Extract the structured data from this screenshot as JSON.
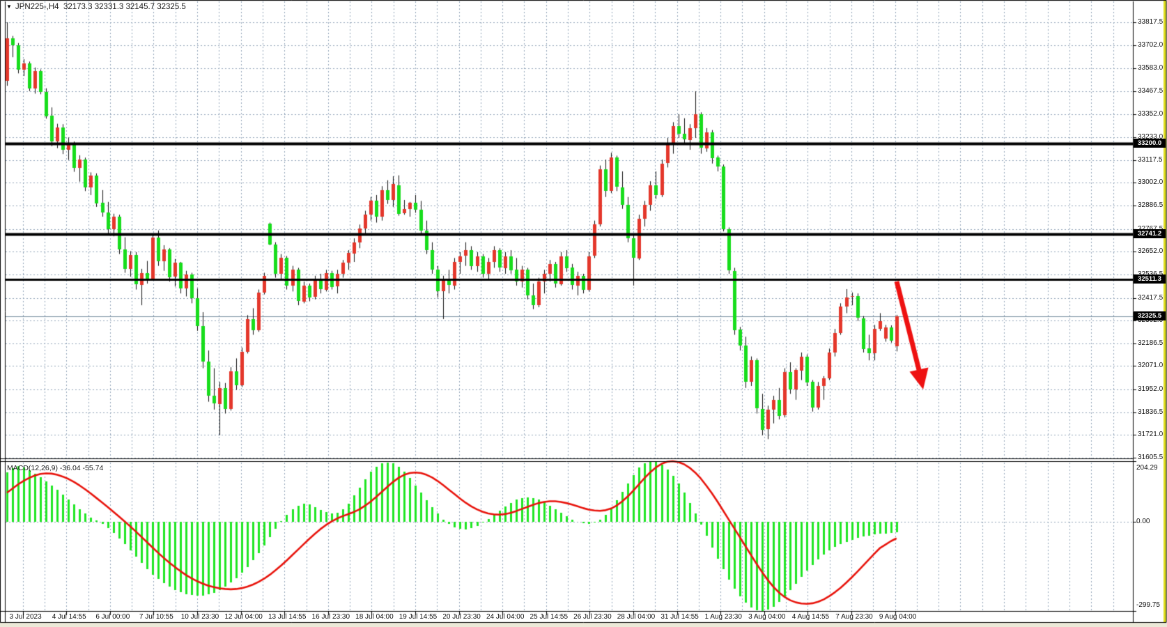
{
  "window": {
    "dropdown_icon": "▼",
    "symbol_period": "JPN225-,H4",
    "ohlc_quote": "32173.3 32331.3 32145.7 32325.5"
  },
  "price_axis": {
    "ticks": [
      "33817.5",
      "33702.0",
      "33583.0",
      "33467.5",
      "33352.0",
      "33233.0",
      "33117.5",
      "33002.0",
      "32886.5",
      "32767.5",
      "32652.0",
      "32536.5",
      "32417.5",
      "32302.0",
      "32186.5",
      "32071.0",
      "31952.0",
      "31836.5",
      "31721.0",
      "31605.5"
    ]
  },
  "time_axis": {
    "labels": [
      "3 Jul 2023",
      "4 Jul 14:55",
      "6 Jul 00:00",
      "7 Jul 10:55",
      "10 Jul 23:30",
      "12 Jul 04:00",
      "13 Jul 14:55",
      "16 Jul 23:30",
      "18 Jul 04:00",
      "19 Jul 14:55",
      "20 Jul 23:30",
      "24 Jul 04:00",
      "25 Jul 14:55",
      "26 Jul 23:30",
      "28 Jul 04:00",
      "31 Jul 14:55",
      "1 Aug 23:30",
      "3 Aug 04:00",
      "4 Aug 14:55",
      "7 Aug 23:30",
      "9 Aug 04:00"
    ]
  },
  "levels": {
    "sr": [
      {
        "value": 33200.0,
        "label": "33200.0"
      },
      {
        "value": 32741.2,
        "label": "32741.2"
      },
      {
        "value": 32511.3,
        "label": "32511.3"
      }
    ],
    "current": {
      "value": 32325.5,
      "label": "32325.5"
    }
  },
  "macd_panel": {
    "label": "MACD(12,26,9) -36.04 -55.74",
    "scale_max": "204.29",
    "scale_zero": "0.00",
    "scale_min": "-299.75"
  },
  "colors": {
    "up": "#e4372b",
    "down": "#17dd1c",
    "wick": "#111111",
    "grid": "#90a3b8",
    "sr_line": "#000000",
    "current_line": "#7d93a4",
    "macd_hist": "#1fe623",
    "macd_signal": "#e8120a",
    "arrow": "#ee1111",
    "tag_bg": "#000000",
    "tag_fg": "#ffffff",
    "window_edge": "#dede20",
    "panel_bg": "#ffffff"
  },
  "chart_data": {
    "type": "candlestick",
    "title": "JPN225-,H4",
    "symbol": "JPN225-",
    "timeframe": "H4",
    "current_quote": {
      "open": 32173.3,
      "high": 32331.3,
      "low": 32145.7,
      "close": 32325.5
    },
    "price_axis_ticks": [
      33817.5,
      33702.0,
      33583.0,
      33467.5,
      33352.0,
      33233.0,
      33117.5,
      33002.0,
      32886.5,
      32767.5,
      32652.0,
      32536.5,
      32417.5,
      32302.0,
      32186.5,
      32071.0,
      31952.0,
      31836.5,
      31721.0,
      31605.5
    ],
    "ylim": [
      31605.5,
      33817.5
    ],
    "sr_levels": [
      33200.0,
      32741.2,
      32511.3
    ],
    "current_price": 32325.5,
    "annotation": {
      "shape": "thick-red-arrow",
      "from_price": 32511,
      "direction": "down-right",
      "note": "bearish arrow drawn from 32511.3 level toward 31950"
    },
    "candles_ohlc": [
      [
        33520,
        33817.5,
        33495,
        33735
      ],
      [
        33735,
        33748,
        33640,
        33700
      ],
      [
        33700,
        33712,
        33558,
        33577
      ],
      [
        33577,
        33630,
        33545,
        33610
      ],
      [
        33610,
        33618,
        33468,
        33482
      ],
      [
        33482,
        33588,
        33455,
        33570
      ],
      [
        33570,
        33578,
        33452,
        33465
      ],
      [
        33465,
        33482,
        33328,
        33342
      ],
      [
        33342,
        33385,
        33188,
        33212
      ],
      [
        33212,
        33302,
        33178,
        33282
      ],
      [
        33282,
        33300,
        33148,
        33168
      ],
      [
        33168,
        33232,
        33118,
        33205
      ],
      [
        33205,
        33212,
        33058,
        33078
      ],
      [
        33078,
        33142,
        33008,
        33122
      ],
      [
        33122,
        33130,
        32960,
        32980
      ],
      [
        32980,
        33055,
        32940,
        33040
      ],
      [
        33040,
        33050,
        32880,
        32900
      ],
      [
        32900,
        32965,
        32830,
        32850
      ],
      [
        32850,
        32905,
        32740,
        32765
      ],
      [
        32765,
        32845,
        32730,
        32830
      ],
      [
        32830,
        32840,
        32640,
        32665
      ],
      [
        32665,
        32725,
        32545,
        32565
      ],
      [
        32565,
        32655,
        32525,
        32635
      ],
      [
        32635,
        32650,
        32460,
        32485
      ],
      [
        32485,
        32565,
        32380,
        32545
      ],
      [
        32545,
        32605,
        32490,
        32515
      ],
      [
        32515,
        32740,
        32505,
        32725
      ],
      [
        32725,
        32760,
        32580,
        32605
      ],
      [
        32605,
        32685,
        32555,
        32665
      ],
      [
        32665,
        32670,
        32500,
        32525
      ],
      [
        32525,
        32615,
        32475,
        32595
      ],
      [
        32595,
        32600,
        32440,
        32465
      ],
      [
        32465,
        32555,
        32425,
        32535
      ],
      [
        32535,
        32545,
        32390,
        32415
      ],
      [
        32415,
        32465,
        32250,
        32275
      ],
      [
        32275,
        32345,
        32060,
        32095
      ],
      [
        32095,
        32150,
        31890,
        31920
      ],
      [
        31920,
        32060,
        31850,
        31880
      ],
      [
        31880,
        31990,
        31720,
        31960
      ],
      [
        31960,
        31985,
        31830,
        31855
      ],
      [
        31855,
        32065,
        31845,
        32045
      ],
      [
        32045,
        32110,
        31950,
        31975
      ],
      [
        31975,
        32165,
        31965,
        32145
      ],
      [
        32145,
        32330,
        32135,
        32310
      ],
      [
        32310,
        32365,
        32230,
        32255
      ],
      [
        32255,
        32460,
        32245,
        32445
      ],
      [
        32445,
        32545,
        32435,
        32530
      ],
      [
        32795,
        32800,
        32685,
        32690
      ],
      [
        32690,
        32700,
        32520,
        32540
      ],
      [
        32540,
        32640,
        32510,
        32620
      ],
      [
        32620,
        32630,
        32460,
        32480
      ],
      [
        32480,
        32580,
        32450,
        32560
      ],
      [
        32560,
        32570,
        32380,
        32400
      ],
      [
        32400,
        32500,
        32390,
        32480
      ],
      [
        32480,
        32490,
        32400,
        32420
      ],
      [
        32420,
        32530,
        32410,
        32510
      ],
      [
        32510,
        32540,
        32440,
        32460
      ],
      [
        32460,
        32560,
        32450,
        32545
      ],
      [
        32545,
        32555,
        32460,
        32475
      ],
      [
        32475,
        32560,
        32440,
        32540
      ],
      [
        32540,
        32610,
        32520,
        32595
      ],
      [
        32595,
        32660,
        32560,
        32645
      ],
      [
        32645,
        32720,
        32600,
        32700
      ],
      [
        32700,
        32790,
        32670,
        32770
      ],
      [
        32770,
        32860,
        32740,
        32840
      ],
      [
        32840,
        32930,
        32810,
        32910
      ],
      [
        32910,
        32940,
        32800,
        32830
      ],
      [
        32830,
        32985,
        32810,
        32965
      ],
      [
        32965,
        33015,
        32895,
        32915
      ],
      [
        32915,
        33035,
        32880,
        32995
      ],
      [
        32990,
        33040,
        32835,
        32845
      ],
      [
        32845,
        32915,
        32840,
        32868
      ],
      [
        32868,
        32905,
        32830,
        32900
      ],
      [
        32900,
        32940,
        32850,
        32865
      ],
      [
        32865,
        32910,
        32740,
        32760
      ],
      [
        32760,
        32810,
        32640,
        32660
      ],
      [
        32660,
        32700,
        32540,
        32560
      ],
      [
        32560,
        32580,
        32420,
        32450
      ],
      [
        32450,
        32530,
        32310,
        32510
      ],
      [
        32510,
        32560,
        32440,
        32480
      ],
      [
        32480,
        32620,
        32460,
        32600
      ],
      [
        32600,
        32650,
        32540,
        32630
      ],
      [
        32630,
        32700,
        32580,
        32660
      ],
      [
        32660,
        32680,
        32560,
        32580
      ],
      [
        32580,
        32650,
        32550,
        32630
      ],
      [
        32630,
        32640,
        32520,
        32540
      ],
      [
        32540,
        32620,
        32510,
        32600
      ],
      [
        32600,
        32680,
        32570,
        32660
      ],
      [
        32660,
        32670,
        32550,
        32570
      ],
      [
        32570,
        32650,
        32540,
        32630
      ],
      [
        32630,
        32660,
        32540,
        32560
      ],
      [
        32560,
        32620,
        32480,
        32500
      ],
      [
        32500,
        32580,
        32470,
        32560
      ],
      [
        32560,
        32570,
        32410,
        32430
      ],
      [
        32430,
        32490,
        32360,
        32380
      ],
      [
        32380,
        32520,
        32370,
        32500
      ],
      [
        32500,
        32560,
        32440,
        32540
      ],
      [
        32540,
        32610,
        32500,
        32590
      ],
      [
        32590,
        32600,
        32470,
        32490
      ],
      [
        32490,
        32650,
        32480,
        32630
      ],
      [
        32630,
        32660,
        32550,
        32570
      ],
      [
        32570,
        32590,
        32460,
        32480
      ],
      [
        32480,
        32550,
        32430,
        32530
      ],
      [
        32530,
        32540,
        32440,
        32460
      ],
      [
        32460,
        32650,
        32450,
        32630
      ],
      [
        32630,
        32810,
        32620,
        32790
      ],
      [
        32790,
        33090,
        32780,
        33070
      ],
      [
        33070,
        33120,
        32930,
        32960
      ],
      [
        32960,
        33155,
        32950,
        33130
      ],
      [
        33130,
        33140,
        32960,
        32980
      ],
      [
        32980,
        33060,
        32870,
        32890
      ],
      [
        32890,
        32930,
        32700,
        32720
      ],
      [
        32720,
        32740,
        32480,
        32620
      ],
      [
        32620,
        32840,
        32610,
        32820
      ],
      [
        32820,
        32910,
        32780,
        32890
      ],
      [
        32890,
        33010,
        32860,
        32990
      ],
      [
        32990,
        33060,
        32920,
        32940
      ],
      [
        32940,
        33120,
        32930,
        33100
      ],
      [
        33100,
        33230,
        33080,
        33200
      ],
      [
        33200,
        33310,
        33150,
        33290
      ],
      [
        33290,
        33350,
        33230,
        33250
      ],
      [
        33250,
        33330,
        33200,
        33220
      ],
      [
        33220,
        33300,
        33170,
        33280
      ],
      [
        33280,
        33467,
        33230,
        33350
      ],
      [
        33350,
        33360,
        33150,
        33180
      ],
      [
        33180,
        33280,
        33160,
        33260
      ],
      [
        33260,
        33270,
        33100,
        33130
      ],
      [
        33130,
        33140,
        33060,
        33085
      ],
      [
        33085,
        33095,
        32755,
        32765
      ],
      [
        32765,
        32775,
        32540,
        32555
      ],
      [
        32555,
        32570,
        32230,
        32255
      ],
      [
        32255,
        32270,
        32150,
        32175
      ],
      [
        32175,
        32220,
        31960,
        31990
      ],
      [
        31990,
        32120,
        31970,
        32100
      ],
      [
        32100,
        32110,
        31830,
        31855
      ],
      [
        31855,
        31930,
        31720,
        31750
      ],
      [
        31750,
        31870,
        31700,
        31850
      ],
      [
        31850,
        31920,
        31780,
        31900
      ],
      [
        31900,
        31960,
        31800,
        31820
      ],
      [
        31820,
        32060,
        31810,
        32040
      ],
      [
        32040,
        32090,
        31930,
        31950
      ],
      [
        31950,
        32060,
        31900,
        32050
      ],
      [
        32050,
        32140,
        32000,
        32120
      ],
      [
        32120,
        32130,
        31970,
        31990
      ],
      [
        31990,
        32000,
        31840,
        31860
      ],
      [
        31860,
        31990,
        31850,
        31970
      ],
      [
        31970,
        32020,
        31900,
        32010
      ],
      [
        32010,
        32160,
        32000,
        32140
      ],
      [
        32140,
        32260,
        32120,
        32240
      ],
      [
        32240,
        32390,
        32230,
        32375
      ],
      [
        32375,
        32462,
        32340,
        32420
      ],
      [
        32420,
        32445,
        32380,
        32425
      ],
      [
        32425,
        32440,
        32300,
        32315
      ],
      [
        32315,
        32325,
        32140,
        32160
      ],
      [
        32160,
        32230,
        32100,
        32135
      ],
      [
        32135,
        32280,
        32100,
        32260
      ],
      [
        32260,
        32340,
        32250,
        32300
      ],
      [
        32210,
        32280,
        32195,
        32268
      ],
      [
        32268,
        32278,
        32190,
        32200
      ],
      [
        32173.3,
        32331.3,
        32145.7,
        32325.5
      ]
    ],
    "macd": {
      "params": "12,26,9",
      "last_main": -36.04,
      "last_signal": -55.74,
      "ylim": [
        -299.75,
        204.29
      ],
      "hist": [
        166,
        180,
        188,
        184,
        174,
        162,
        150,
        137,
        123,
        108,
        92,
        75,
        58,
        42,
        28,
        15,
        4,
        -8,
        -22,
        -38,
        -56,
        -76,
        -97,
        -118,
        -139,
        -159,
        -177,
        -193,
        -207,
        -219,
        -229,
        -237,
        -243,
        -247,
        -249,
        -248,
        -244,
        -238,
        -229,
        -218,
        -205,
        -190,
        -172,
        -152,
        -130,
        -106,
        -80,
        -52,
        -24,
        2,
        24,
        42,
        54,
        60,
        58,
        50,
        40,
        32,
        28,
        30,
        42,
        62,
        88,
        116,
        144,
        168,
        186,
        197,
        200,
        196,
        185,
        168,
        147,
        123,
        98,
        73,
        49,
        27,
        8,
        -7,
        -18,
        -24,
        -25,
        -21,
        -13,
        -2,
        10,
        24,
        38,
        52,
        64,
        74,
        80,
        82,
        80,
        74,
        65,
        54,
        42,
        30,
        18,
        8,
        0,
        -5,
        -6,
        -2,
        8,
        24,
        46,
        72,
        100,
        130,
        158,
        182,
        198,
        204.29,
        202,
        192,
        176,
        154,
        128,
        98,
        64,
        28,
        -10,
        -48,
        -86,
        -124,
        -160,
        -194,
        -224,
        -250,
        -272,
        -288,
        -297,
        -299.75,
        -295,
        -285,
        -270,
        -251,
        -230,
        -208,
        -186,
        -165,
        -145,
        -127,
        -111,
        -97,
        -85,
        -75,
        -67,
        -60,
        -54,
        -50,
        -46,
        -43,
        -41,
        -39,
        -37.5,
        -36.04
      ],
      "signal": [
        98,
        112,
        126,
        138,
        148,
        156,
        161,
        163,
        162,
        158,
        152,
        144,
        134,
        122,
        109,
        95,
        80,
        65,
        50,
        34,
        18,
        2,
        -15,
        -32,
        -50,
        -68,
        -86,
        -104,
        -121,
        -137,
        -152,
        -166,
        -179,
        -190,
        -200,
        -208,
        -215,
        -220,
        -224,
        -226,
        -227,
        -226,
        -223,
        -218,
        -211,
        -202,
        -191,
        -178,
        -163,
        -147,
        -130,
        -112,
        -94,
        -76,
        -58,
        -41,
        -25,
        -11,
        1,
        11,
        19,
        26,
        33,
        42,
        54,
        68,
        84,
        101,
        118,
        134,
        148,
        158,
        164,
        166,
        164,
        158,
        149,
        137,
        123,
        108,
        93,
        78,
        64,
        52,
        42,
        34,
        28,
        25,
        24,
        26,
        30,
        36,
        43,
        50,
        57,
        63,
        67,
        69,
        69,
        67,
        63,
        58,
        52,
        46,
        41,
        38,
        37,
        39,
        45,
        55,
        69,
        86,
        106,
        127,
        148,
        167,
        183,
        195,
        202,
        204,
        201,
        194,
        182,
        166,
        146,
        122,
        96,
        68,
        38,
        8,
        -22,
        -52,
        -82,
        -112,
        -142,
        -170,
        -196,
        -219,
        -238,
        -253,
        -264,
        -271,
        -275,
        -276,
        -274,
        -269,
        -261,
        -250,
        -237,
        -222,
        -205,
        -187,
        -168,
        -148,
        -128,
        -108,
        -89,
        -77,
        -65,
        -55.74
      ]
    }
  }
}
